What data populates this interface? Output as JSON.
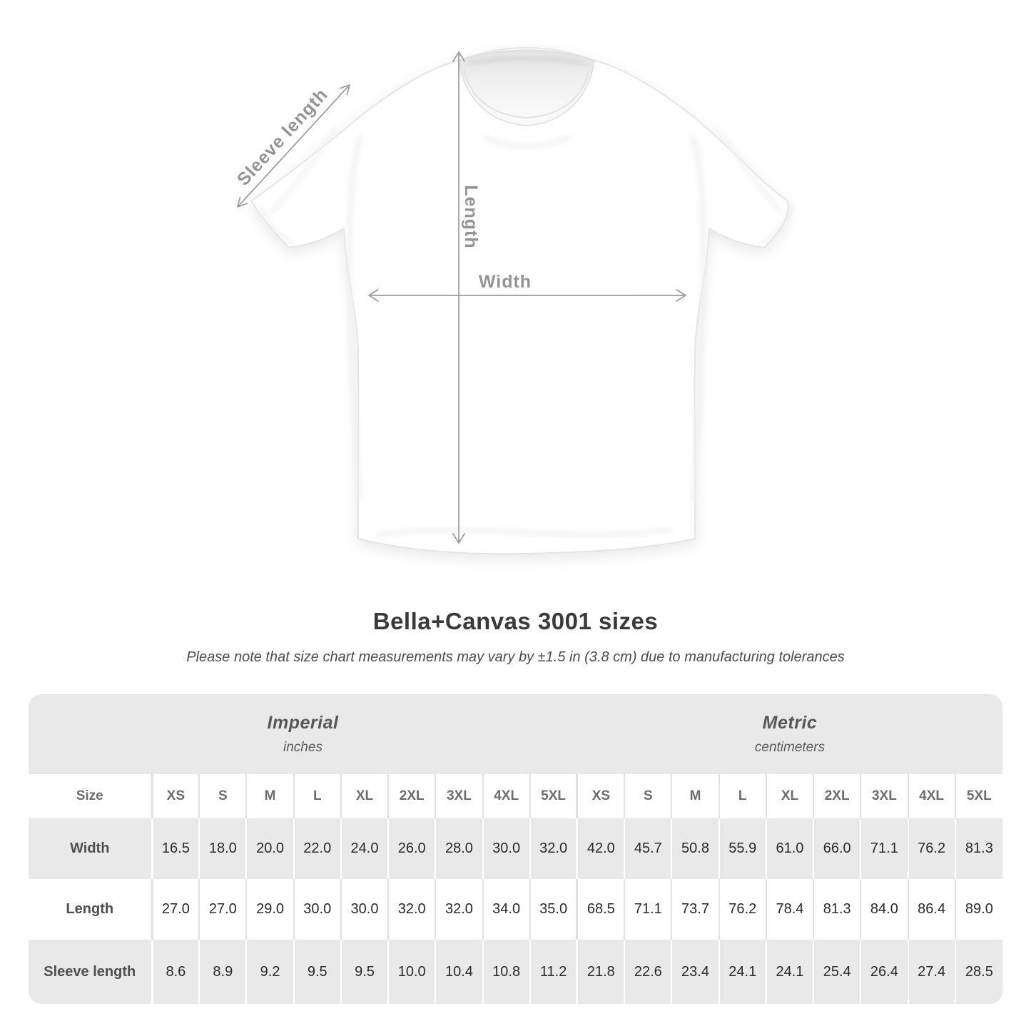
{
  "diagram": {
    "sleeve_label": "Sleeve length",
    "length_label": "Length",
    "width_label": "Width"
  },
  "heading": {
    "title": "Bella+Canvas 3001 sizes",
    "subtitle": "Please note that size chart measurements may vary by ±1.5 in (3.8 cm) due to manufacturing tolerances"
  },
  "table": {
    "size_label": "Size",
    "groups": [
      {
        "name": "Imperial",
        "unit": "inches"
      },
      {
        "name": "Metric",
        "unit": "centimeters"
      }
    ],
    "sizes": [
      "XS",
      "S",
      "M",
      "L",
      "XL",
      "2XL",
      "3XL",
      "4XL",
      "5XL"
    ],
    "rows": [
      {
        "label": "Width",
        "imperial": [
          "16.5",
          "18.0",
          "20.0",
          "22.0",
          "24.0",
          "26.0",
          "28.0",
          "30.0",
          "32.0"
        ],
        "metric": [
          "42.0",
          "45.7",
          "50.8",
          "55.9",
          "61.0",
          "66.0",
          "71.1",
          "76.2",
          "81.3"
        ]
      },
      {
        "label": "Length",
        "imperial": [
          "27.0",
          "27.0",
          "29.0",
          "30.0",
          "30.0",
          "32.0",
          "32.0",
          "34.0",
          "35.0"
        ],
        "metric": [
          "68.5",
          "71.1",
          "73.7",
          "76.2",
          "78.4",
          "81.3",
          "84.0",
          "86.4",
          "89.0"
        ]
      },
      {
        "label": "Sleeve length",
        "imperial": [
          "8.6",
          "8.9",
          "9.2",
          "9.5",
          "9.5",
          "10.0",
          "10.4",
          "10.8",
          "11.2"
        ],
        "metric": [
          "21.8",
          "22.6",
          "23.4",
          "24.1",
          "24.1",
          "25.4",
          "26.4",
          "27.4",
          "28.5"
        ]
      }
    ]
  },
  "colors": {
    "row_gray": "#e9e9e9",
    "separator_gray": "#e1e1e1",
    "arrow": "#9b9b9b",
    "diagram_label": "#949494",
    "title_text": "#3a3a3a",
    "number_text": "#2a2a2a"
  },
  "chart_data": {
    "type": "table",
    "title": "Bella+Canvas 3001 sizes",
    "note": "Please note that size chart measurements may vary by ±1.5 in (3.8 cm) due to manufacturing tolerances",
    "columns": [
      "XS",
      "S",
      "M",
      "L",
      "XL",
      "2XL",
      "3XL",
      "4XL",
      "5XL"
    ],
    "unit_groups": [
      {
        "name": "Imperial",
        "unit": "inches"
      },
      {
        "name": "Metric",
        "unit": "centimeters"
      }
    ],
    "rows": [
      {
        "measurement": "Width",
        "imperial_inches": [
          16.5,
          18.0,
          20.0,
          22.0,
          24.0,
          26.0,
          28.0,
          30.0,
          32.0
        ],
        "metric_centimeters": [
          42.0,
          45.7,
          50.8,
          55.9,
          61.0,
          66.0,
          71.1,
          76.2,
          81.3
        ]
      },
      {
        "measurement": "Length",
        "imperial_inches": [
          27.0,
          27.0,
          29.0,
          30.0,
          30.0,
          32.0,
          32.0,
          34.0,
          35.0
        ],
        "metric_centimeters": [
          68.5,
          71.1,
          73.7,
          76.2,
          78.4,
          81.3,
          84.0,
          86.4,
          89.0
        ]
      },
      {
        "measurement": "Sleeve length",
        "imperial_inches": [
          8.6,
          8.9,
          9.2,
          9.5,
          9.5,
          10.0,
          10.4,
          10.8,
          11.2
        ],
        "metric_centimeters": [
          21.8,
          22.6,
          23.4,
          24.1,
          24.1,
          25.4,
          26.4,
          27.4,
          28.5
        ]
      }
    ]
  }
}
